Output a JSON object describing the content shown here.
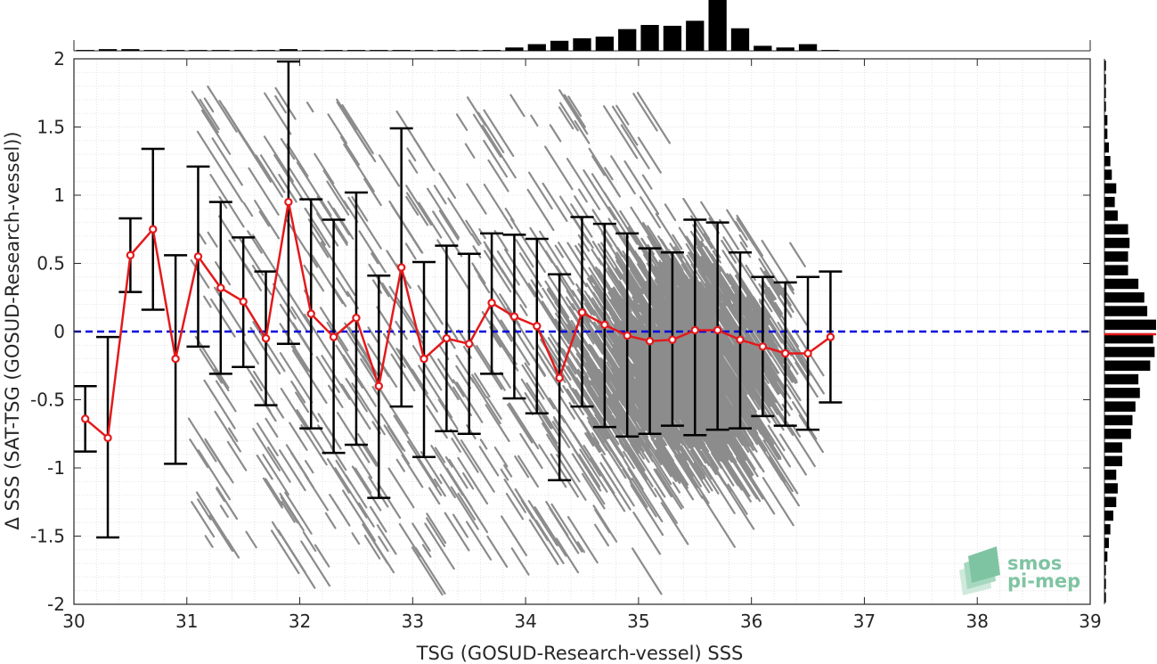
{
  "chart_data": {
    "type": "scatter",
    "xlabel": "TSG (GOSUD-Research-vessel) SSS",
    "ylabel": "Δ SSS (SAT-TSG (GOSUD-Research-vessel))",
    "xlim": [
      30,
      39
    ],
    "ylim": [
      -2,
      2
    ],
    "xticks": [
      30,
      31,
      32,
      33,
      34,
      35,
      36,
      37,
      38,
      39
    ],
    "yticks": [
      -2,
      -1.5,
      -1,
      -0.5,
      0,
      0.5,
      1,
      1.5,
      2
    ],
    "xtick_labels": [
      "30",
      "31",
      "32",
      "33",
      "34",
      "35",
      "36",
      "37",
      "38",
      "39"
    ],
    "ytick_labels": [
      "-2",
      "-1.5",
      "-1",
      "-0.5",
      "0",
      "0.5",
      "1",
      "1.5",
      "2"
    ],
    "grid": "minor dotted",
    "zero_line": {
      "y": 0,
      "color": "#0000dd",
      "style": "dashed"
    },
    "scatter_color": "#8c8c8c",
    "mean_color": "#e31a1c",
    "errorbar_color": "#000000",
    "binned_stats": {
      "x": [
        30.1,
        30.3,
        30.5,
        30.7,
        30.9,
        31.1,
        31.3,
        31.5,
        31.7,
        31.9,
        32.1,
        32.3,
        32.5,
        32.7,
        32.9,
        33.1,
        33.3,
        33.5,
        33.7,
        33.9,
        34.1,
        34.3,
        34.5,
        34.7,
        34.9,
        35.1,
        35.3,
        35.5,
        35.7,
        35.9,
        36.1,
        36.3,
        36.5,
        36.7
      ],
      "mean": [
        -0.64,
        -0.78,
        0.56,
        0.75,
        -0.2,
        0.55,
        0.32,
        0.22,
        -0.05,
        0.95,
        0.13,
        -0.04,
        0.1,
        -0.4,
        0.47,
        -0.2,
        -0.05,
        -0.09,
        0.21,
        0.11,
        0.04,
        -0.34,
        0.14,
        0.05,
        -0.03,
        -0.07,
        -0.06,
        0.01,
        0.01,
        -0.06,
        -0.11,
        -0.16,
        -0.16,
        -0.04
      ],
      "lower": [
        -0.88,
        -1.51,
        0.29,
        0.16,
        -0.97,
        -0.11,
        -0.31,
        -0.26,
        -0.54,
        -0.09,
        -0.71,
        -0.89,
        -0.83,
        -1.22,
        -0.55,
        -0.92,
        -0.73,
        -0.75,
        -0.31,
        -0.49,
        -0.6,
        -1.09,
        -0.55,
        -0.7,
        -0.77,
        -0.75,
        -0.69,
        -0.76,
        -0.72,
        -0.71,
        -0.62,
        -0.69,
        -0.72,
        -0.52
      ],
      "upper": [
        -0.4,
        -0.04,
        0.83,
        1.34,
        0.56,
        1.21,
        0.95,
        0.69,
        0.44,
        1.98,
        0.97,
        0.82,
        1.02,
        0.41,
        1.49,
        0.51,
        0.63,
        0.57,
        0.72,
        0.71,
        0.68,
        0.42,
        0.84,
        0.79,
        0.72,
        0.61,
        0.58,
        0.82,
        0.8,
        0.58,
        0.4,
        0.36,
        0.4,
        0.44
      ]
    },
    "top_histogram": {
      "bins": [
        30.1,
        30.3,
        30.5,
        30.7,
        30.9,
        31.1,
        31.3,
        31.5,
        31.7,
        31.9,
        32.1,
        32.3,
        32.5,
        32.7,
        32.9,
        33.1,
        33.3,
        33.5,
        33.7,
        33.9,
        34.1,
        34.3,
        34.5,
        34.7,
        34.9,
        35.1,
        35.3,
        35.5,
        35.7,
        35.9,
        36.1,
        36.3,
        36.5,
        36.7
      ],
      "counts": [
        1,
        2,
        2,
        1,
        1,
        1,
        1,
        1,
        1,
        2,
        1,
        1,
        1,
        1,
        1,
        1,
        1,
        1,
        1,
        4,
        8,
        12,
        15,
        17,
        26,
        31,
        30,
        36,
        62,
        27,
        6,
        4,
        8,
        1
      ]
    },
    "right_histogram": {
      "bins": [
        -1.95,
        -1.85,
        -1.75,
        -1.65,
        -1.55,
        -1.45,
        -1.35,
        -1.25,
        -1.15,
        -1.05,
        -0.95,
        -0.85,
        -0.75,
        -0.65,
        -0.55,
        -0.45,
        -0.35,
        -0.25,
        -0.15,
        -0.05,
        0.05,
        0.15,
        0.25,
        0.35,
        0.45,
        0.55,
        0.65,
        0.75,
        0.85,
        0.95,
        1.05,
        1.15,
        1.25,
        1.35,
        1.45,
        1.55,
        1.65,
        1.75,
        1.85,
        1.95
      ],
      "counts": [
        1,
        1,
        1,
        2,
        3,
        4,
        6,
        8,
        9,
        8,
        12,
        12,
        18,
        19,
        21,
        24,
        23,
        31,
        34,
        33,
        35,
        29,
        27,
        23,
        16,
        16,
        17,
        16,
        9,
        7,
        8,
        5,
        4,
        3,
        2,
        2,
        1,
        1,
        1,
        1
      ],
      "mean_marker": -0.02
    }
  },
  "logo": {
    "line1": "smos",
    "line2": "pi-mep"
  }
}
